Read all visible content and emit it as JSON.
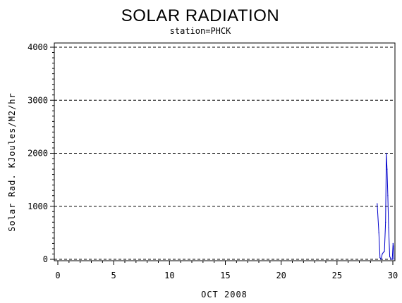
{
  "chart_data": {
    "type": "line",
    "title": "SOLAR RADIATION",
    "subtitle": "station=PHCK",
    "xlabel": "OCT 2008",
    "ylabel": "Solar Rad. KJoules/M2/hr",
    "xlim": [
      0,
      30
    ],
    "ylim": [
      0,
      4000
    ],
    "x_ticks": [
      0,
      5,
      10,
      15,
      20,
      25,
      30
    ],
    "x_tick_labels": [
      "0",
      "5",
      "10",
      "15",
      "20",
      "25",
      "30"
    ],
    "y_ticks": [
      0,
      1000,
      2000,
      3000,
      4000
    ],
    "y_tick_labels": [
      "0",
      "1000",
      "2000",
      "3000",
      "4000"
    ],
    "grid": "horizontal-dashed",
    "series": [
      {
        "color": "#0000cc",
        "x": [
          28.6,
          28.75,
          28.85,
          28.95,
          29.05,
          29.15,
          29.25,
          29.35,
          29.42,
          29.48,
          29.55,
          29.62,
          29.72,
          29.85,
          29.95,
          30.02,
          30.05,
          30.1
        ],
        "y": [
          1050,
          500,
          30,
          0,
          100,
          130,
          150,
          700,
          2000,
          1700,
          1200,
          600,
          50,
          0,
          0,
          300,
          250,
          0
        ]
      }
    ]
  }
}
